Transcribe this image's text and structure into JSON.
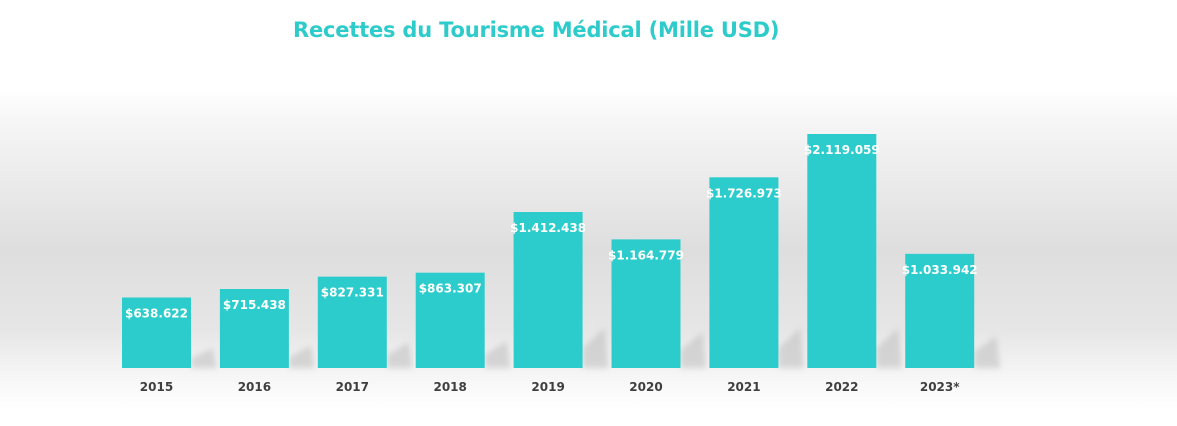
{
  "chart_data": {
    "type": "bar",
    "title": "Recettes du Tourisme Médical (Mille USD)",
    "xlabel": "",
    "ylabel": "",
    "categories": [
      "2015",
      "2016",
      "2017",
      "2018",
      "2019",
      "2020",
      "2021",
      "2022",
      "2023*"
    ],
    "values": [
      638622,
      715438,
      827331,
      863307,
      1412438,
      1164779,
      1726973,
      2119059,
      1033942
    ],
    "data_labels": [
      "$638.622",
      "$715.438",
      "$827.331",
      "$863.307",
      "$1.412.438",
      "$1.164.779",
      "$1.726.973",
      "$2.119.059",
      "$1.033.942"
    ],
    "ylim": [
      0,
      2119059
    ],
    "grid": false,
    "legend": "none",
    "bar_color": "#2dcccc",
    "title_color": "#2ecbcb"
  }
}
